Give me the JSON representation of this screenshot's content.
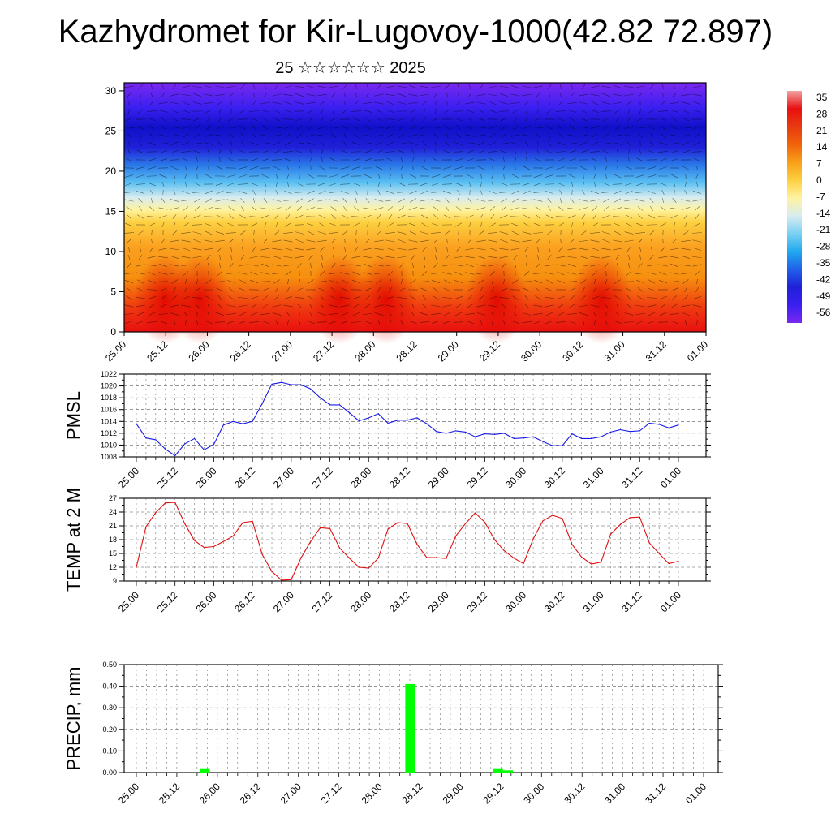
{
  "title": "Kazhydromet for Kir-Lugovoy-1000(42.82 72.897)",
  "subtitle": "25 ☆☆☆☆☆☆ 2025",
  "colors": {
    "pmsl_line": "#1a1ae6",
    "temp_line": "#e01010",
    "precip_bar": "#00ff00",
    "axis": "#000000",
    "grid": "#555555"
  },
  "time_labels": [
    "25.00",
    "25.12",
    "26.00",
    "26.12",
    "27.00",
    "27.12",
    "28.00",
    "28.12",
    "29.00",
    "29.12",
    "30.00",
    "30.12",
    "31.00",
    "31.12",
    "01.00"
  ],
  "colorbar": {
    "labels": [
      "35",
      "28",
      "21",
      "14",
      "7",
      "0",
      "-7",
      "-14",
      "-21",
      "-28",
      "-35",
      "-42",
      "-49",
      "-56"
    ],
    "palette": [
      "#f2a0a0",
      "#e81010",
      "#e83a10",
      "#f0640a",
      "#f8a018",
      "#fdd040",
      "#fff3a0",
      "#d8ecf0",
      "#7ad0f2",
      "#20a8f0",
      "#2060e8",
      "#2020d8",
      "#3a20f0",
      "#7a28f0"
    ]
  },
  "chart_data": [
    {
      "type": "heatmap",
      "description_name": "cross-section",
      "x_labels": [
        "25.00",
        "25.12",
        "26.00",
        "26.12",
        "27.00",
        "27.12",
        "28.00",
        "28.12",
        "29.00",
        "29.12",
        "30.00",
        "30.12",
        "31.00",
        "31.12",
        "01.00"
      ],
      "yticks": [
        0,
        5,
        10,
        15,
        20,
        25,
        30
      ],
      "ylim": [
        0,
        31
      ],
      "color_range": [
        -56,
        35
      ]
    },
    {
      "type": "line",
      "ylabel": "PMSL",
      "yticks": [
        1008,
        1010,
        1012,
        1014,
        1016,
        1018,
        1020,
        1022
      ],
      "ylim": [
        1008,
        1022
      ],
      "x_labels": [
        "25.00",
        "25.12",
        "26.00",
        "26.12",
        "27.00",
        "27.12",
        "28.00",
        "28.12",
        "29.00",
        "29.12",
        "30.00",
        "30.12",
        "31.00",
        "31.12",
        "01.00"
      ],
      "series": [
        {
          "values": [
            1013.6,
            1011.2,
            1010.9,
            1009.3,
            1008.2,
            1010.2,
            1011.1,
            1009.2,
            1010.1,
            1013.4,
            1014.0,
            1013.6,
            1014.0,
            1017.0,
            1020.3,
            1020.6,
            1020.2,
            1020.2,
            1019.5,
            1018.0,
            1016.8,
            1016.8,
            1015.5,
            1014.1,
            1014.6,
            1015.3,
            1013.7,
            1014.2,
            1014.2,
            1014.6,
            1013.6,
            1012.3,
            1012.0,
            1012.4,
            1012.2,
            1011.4,
            1011.9,
            1011.8,
            1012.0,
            1011.1,
            1011.2,
            1011.4,
            1010.6,
            1009.9,
            1009.9,
            1011.9,
            1011.1,
            1011.1,
            1011.4,
            1012.2,
            1012.6,
            1012.3,
            1012.4,
            1013.7,
            1013.5,
            1012.9,
            1013.4
          ]
        }
      ]
    },
    {
      "type": "line",
      "ylabel": "TEMP at 2 M",
      "yticks": [
        9,
        12,
        15,
        18,
        21,
        24,
        27
      ],
      "ylim": [
        9,
        27
      ],
      "x_labels": [
        "25.00",
        "25.12",
        "26.00",
        "26.12",
        "27.00",
        "27.12",
        "28.00",
        "28.12",
        "29.00",
        "29.12",
        "30.00",
        "30.12",
        "31.00",
        "31.12",
        "01.00"
      ],
      "series": [
        {
          "values": [
            12.0,
            20.8,
            23.9,
            26.0,
            26.1,
            21.5,
            17.8,
            16.3,
            16.5,
            17.6,
            18.8,
            21.7,
            22.0,
            14.8,
            11.1,
            9.2,
            9.3,
            14.0,
            17.6,
            20.6,
            20.4,
            16.2,
            14.0,
            12.0,
            11.8,
            14.0,
            20.3,
            21.7,
            21.5,
            17.0,
            14.1,
            14.1,
            13.9,
            18.8,
            21.5,
            23.8,
            21.8,
            18.0,
            15.6,
            14.0,
            12.8,
            18.2,
            22.1,
            23.3,
            22.6,
            17.0,
            14.2,
            12.7,
            13.1,
            19.2,
            21.3,
            22.8,
            22.9,
            17.3,
            15.0,
            12.8,
            13.3
          ]
        }
      ]
    },
    {
      "type": "bar",
      "ylabel": "PRECIP, mm",
      "yticks": [
        "0.00",
        "0.10",
        "0.20",
        "0.30",
        "0.40",
        "0.50"
      ],
      "ylim": [
        0,
        0.5
      ],
      "x_labels": [
        "25.00",
        "25.12",
        "26.00",
        "26.12",
        "27.00",
        "27.12",
        "28.00",
        "28.12",
        "29.00",
        "29.12",
        "30.00",
        "30.12",
        "31.00",
        "31.12",
        "01.00"
      ],
      "bars": [
        {
          "step": 7,
          "value": 0.02
        },
        {
          "step": 28,
          "value": 0.41
        },
        {
          "step": 37,
          "value": 0.02
        },
        {
          "step": 38,
          "value": 0.01
        }
      ]
    }
  ]
}
